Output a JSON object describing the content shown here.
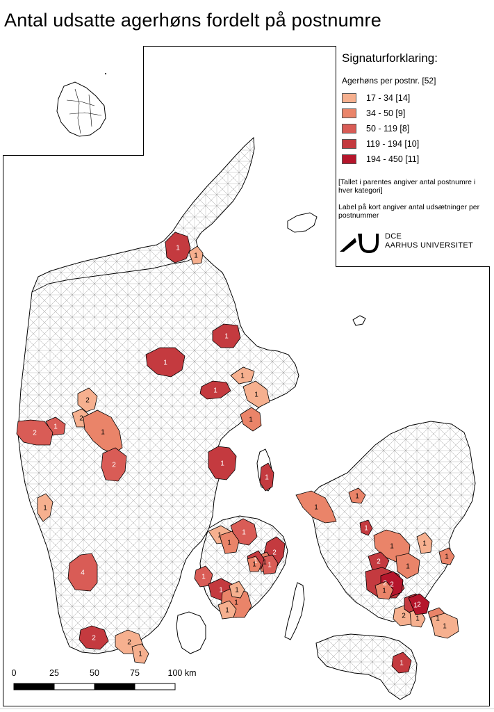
{
  "title": "Antal udsatte agerhøns fordelt på postnumre",
  "legend": {
    "title": "Signaturforklaring:",
    "subtitle": "Agerhøns per postnr. [52]",
    "classes": [
      {
        "label": "17 - 34  [14]",
        "color": "#f6b08f"
      },
      {
        "label": "34 - 50  [9]",
        "color": "#ea8469"
      },
      {
        "label": "50 - 119  [8]",
        "color": "#d95c56"
      },
      {
        "label": "119 - 194  [10]",
        "color": "#c43a3f"
      },
      {
        "label": "194 - 450  [11]",
        "color": "#b5152b"
      }
    ],
    "note1": "[Tallet i parentes angiver antal postnumre i hver kategori]",
    "note2": "Label på kort angiver antal udsætninger per postnummer",
    "logo_line1": "DCE",
    "logo_line2": "AARHUS UNIVERSITET"
  },
  "scale_bar": {
    "labels": [
      "0",
      "25",
      "50",
      "75",
      "100 km"
    ]
  },
  "map_labels": [
    {
      "text": "1",
      "cls": 4
    },
    {
      "text": "1",
      "cls": 1
    },
    {
      "text": "1",
      "cls": 4
    },
    {
      "text": "1",
      "cls": 4
    },
    {
      "text": "1",
      "cls": 4
    },
    {
      "text": "1",
      "cls": 1
    },
    {
      "text": "1",
      "cls": 1
    },
    {
      "text": "1",
      "cls": 2
    },
    {
      "text": "2",
      "cls": 1
    },
    {
      "text": "2",
      "cls": 1
    },
    {
      "text": "1",
      "cls": 2
    },
    {
      "text": "2",
      "cls": 3
    },
    {
      "text": "1",
      "cls": 3
    },
    {
      "text": "2",
      "cls": 3
    },
    {
      "text": "1",
      "cls": 4
    },
    {
      "text": "1",
      "cls": 4
    },
    {
      "text": "1",
      "cls": 1
    },
    {
      "text": "1",
      "cls": 2
    },
    {
      "text": "1",
      "cls": 2
    },
    {
      "text": "1",
      "cls": 4
    },
    {
      "text": "1",
      "cls": 2
    },
    {
      "text": "1",
      "cls": 1
    },
    {
      "text": "1",
      "cls": 2
    },
    {
      "text": "2",
      "cls": 4
    },
    {
      "text": "1",
      "cls": 2
    },
    {
      "text": "1",
      "cls": 1
    },
    {
      "text": "1",
      "cls": 3
    },
    {
      "text": "2",
      "cls": 4
    },
    {
      "text": "1",
      "cls": 2
    },
    {
      "text": "1",
      "cls": 2
    },
    {
      "text": "1",
      "cls": 3
    },
    {
      "text": "1",
      "cls": 4
    },
    {
      "text": "1",
      "cls": 2
    },
    {
      "text": "4",
      "cls": 3
    },
    {
      "text": "2",
      "cls": 4
    },
    {
      "text": "2",
      "cls": 1
    },
    {
      "text": "1",
      "cls": 1
    },
    {
      "text": "1",
      "cls": 3
    },
    {
      "text": "1",
      "cls": 4
    },
    {
      "text": "1",
      "cls": 2
    },
    {
      "text": "1",
      "cls": 1
    },
    {
      "text": "1",
      "cls": 1
    },
    {
      "text": "2",
      "cls": 4
    },
    {
      "text": "2",
      "cls": 1
    },
    {
      "text": "1",
      "cls": 4
    },
    {
      "text": "2",
      "cls": 5
    },
    {
      "text": "1",
      "cls": 2
    },
    {
      "text": "1",
      "cls": 1
    },
    {
      "text": "1",
      "cls": 1
    },
    {
      "text": "2",
      "cls": 5
    },
    {
      "text": "1",
      "cls": 2
    },
    {
      "text": "1",
      "cls": 4
    }
  ]
}
